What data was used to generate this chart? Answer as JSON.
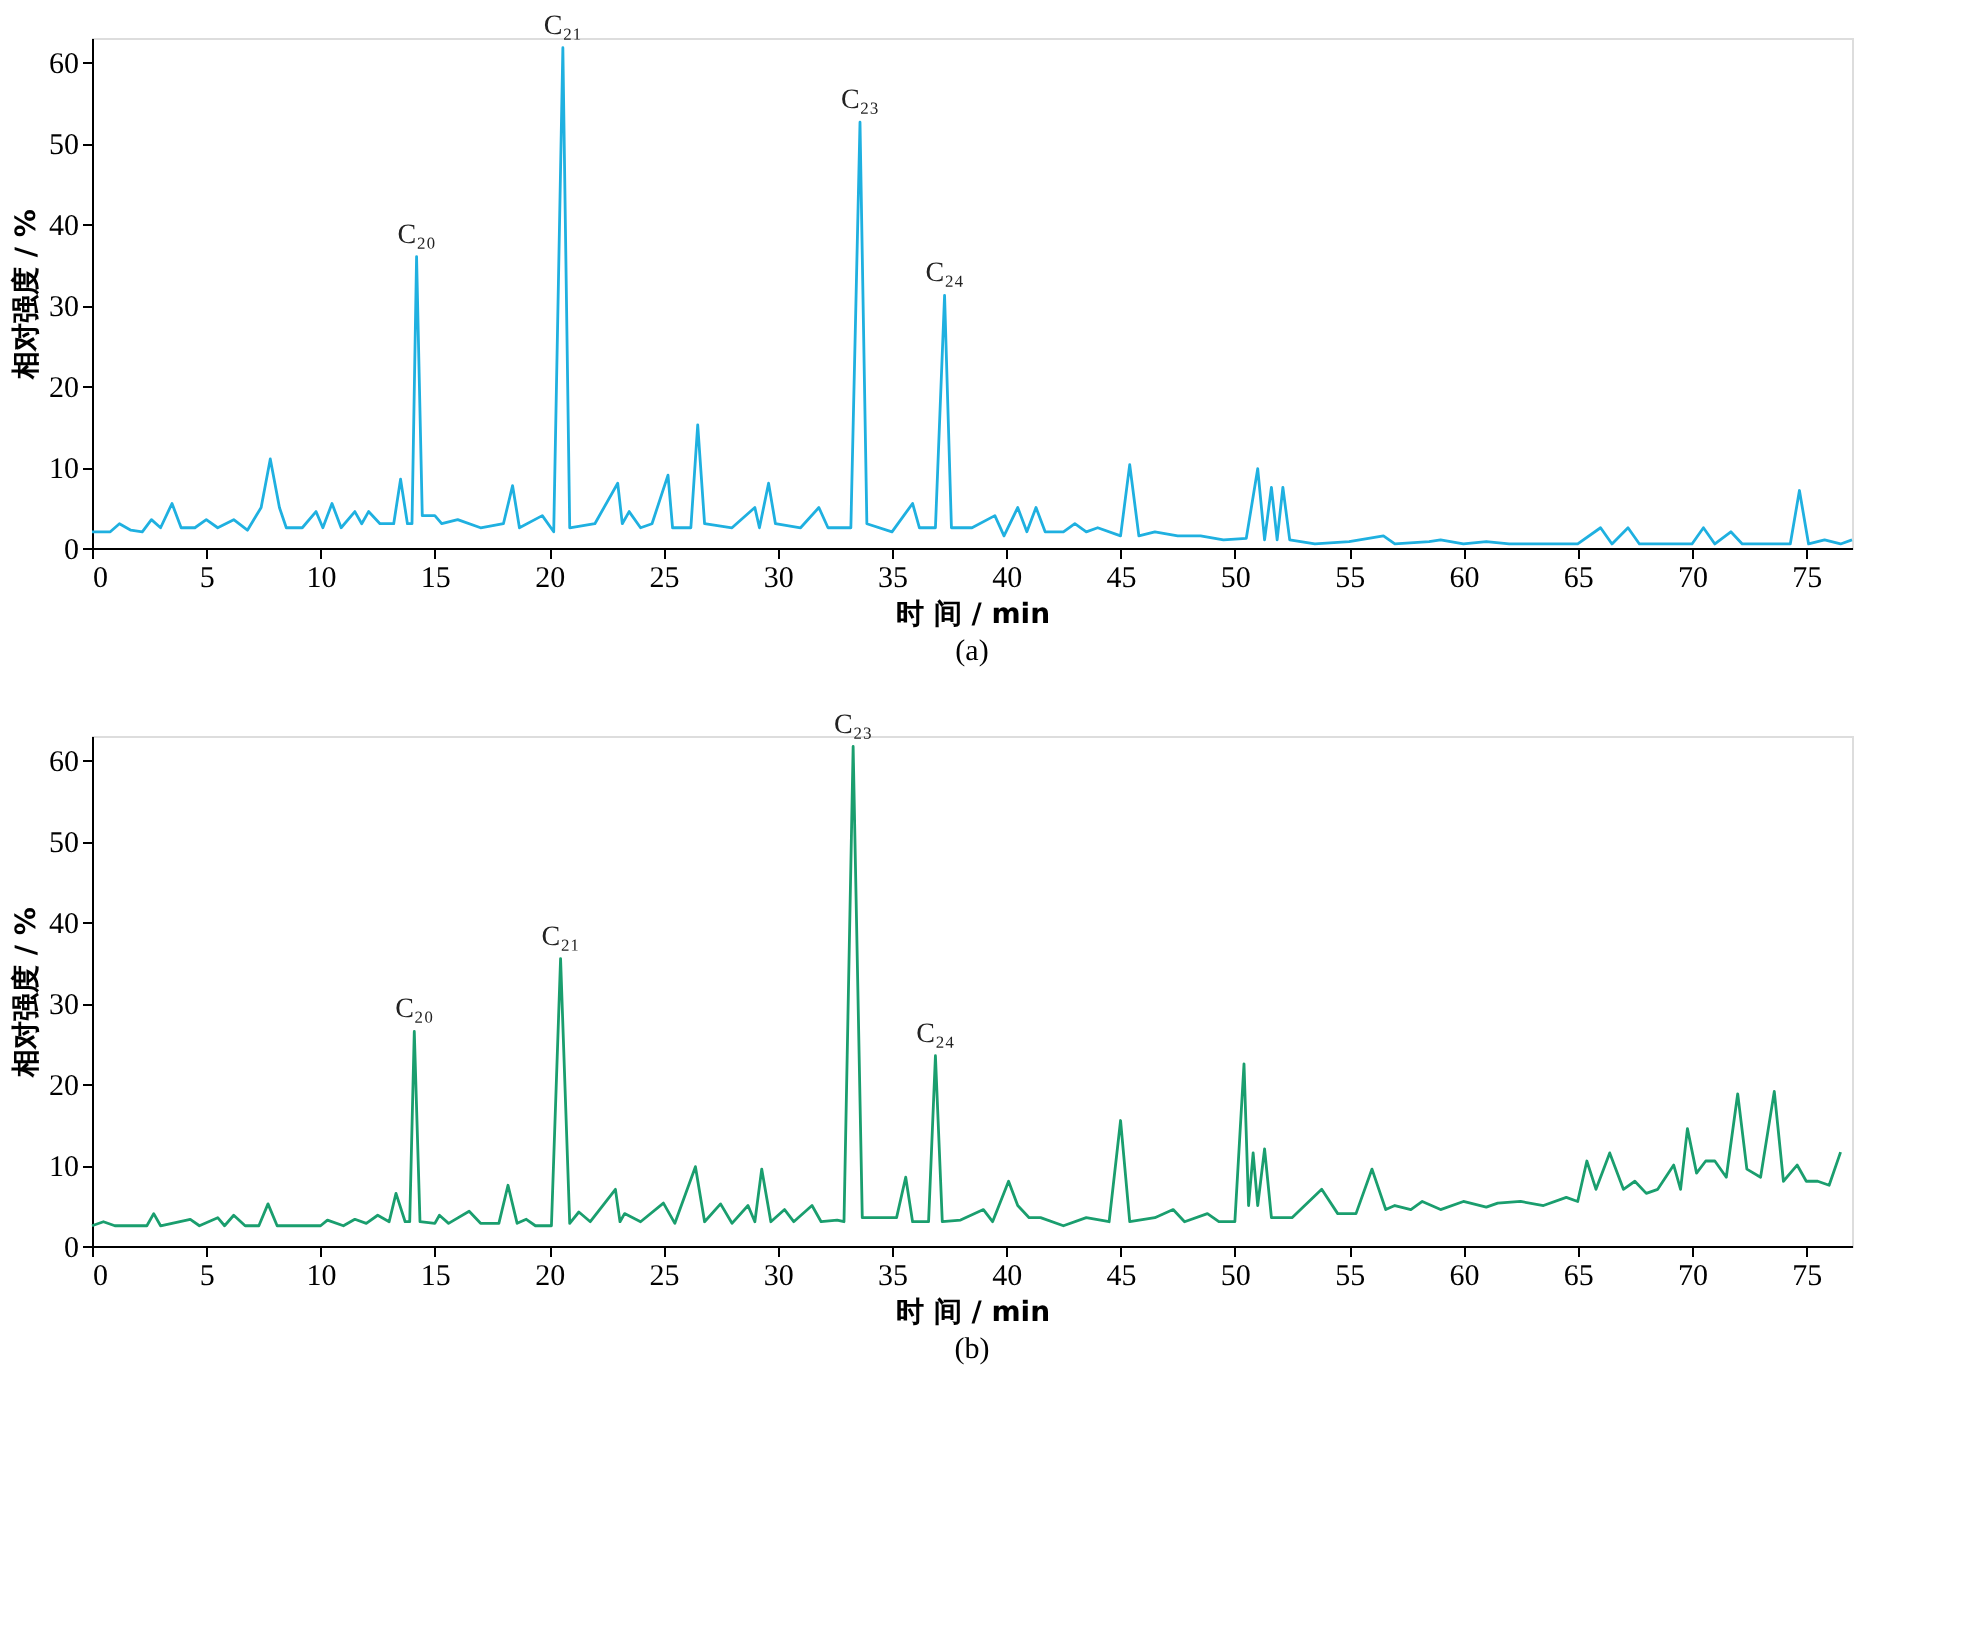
{
  "chart_data": [
    {
      "type": "line",
      "title": "(a)",
      "xlabel": "时 间 / min",
      "ylabel": "相对强度 / %",
      "xlim": [
        0,
        77
      ],
      "ylim": [
        0,
        63
      ],
      "xticks": [
        0,
        5,
        10,
        15,
        20,
        25,
        30,
        35,
        40,
        45,
        50,
        55,
        60,
        65,
        70,
        75
      ],
      "yticks": [
        0,
        10,
        20,
        30,
        40,
        50,
        60
      ],
      "series": [
        {
          "color": "#1fb0e0",
          "x": [
            0,
            0.8,
            1.2,
            1.7,
            2.2,
            2.6,
            3,
            3.5,
            3.9,
            4.5,
            5,
            5.5,
            6.2,
            6.8,
            7.4,
            7.8,
            8.2,
            8.5,
            9.2,
            9.8,
            10.1,
            10.5,
            10.9,
            11.5,
            11.8,
            12.1,
            12.6,
            13.2,
            13.5,
            13.8,
            14,
            14.2,
            14.45,
            15,
            15.3,
            16,
            17,
            18,
            18.4,
            18.7,
            19.7,
            20.2,
            20.6,
            20.9,
            22,
            23,
            23.2,
            23.5,
            24,
            24.5,
            25.2,
            25.4,
            26.2,
            26.5,
            26.8,
            28,
            29,
            29.2,
            29.6,
            29.9,
            31,
            31.8,
            32.2,
            33.2,
            33.6,
            33.9,
            35,
            35.9,
            36.2,
            36.9,
            37.3,
            37.6,
            38.5,
            39.5,
            39.9,
            40.5,
            40.9,
            41.3,
            41.7,
            42.5,
            43,
            43.5,
            44,
            45,
            45.4,
            45.8,
            46.5,
            47.5,
            48.5,
            49.5,
            50.5,
            51,
            51.3,
            51.6,
            51.85,
            52.1,
            52.4,
            53.5,
            55,
            56.5,
            57,
            58.5,
            59,
            60,
            61,
            62,
            65,
            66,
            66.5,
            67.2,
            67.7,
            70,
            70.5,
            71,
            71.7,
            72.2,
            74.3,
            74.7,
            75.1,
            75.8,
            76.5,
            77
          ],
          "values": [
            2,
            2,
            3,
            2.2,
            2,
            3.5,
            2.5,
            5.5,
            2.5,
            2.5,
            3.5,
            2.5,
            3.5,
            2.2,
            5,
            11,
            5,
            2.5,
            2.5,
            4.5,
            2.5,
            5.5,
            2.5,
            4.5,
            3,
            4.5,
            3,
            3,
            8.5,
            3,
            3,
            36,
            4,
            4,
            3,
            3.5,
            2.5,
            3,
            7.7,
            2.5,
            4,
            2,
            61.8,
            2.5,
            3,
            8,
            3,
            4.5,
            2.5,
            3,
            9,
            2.5,
            2.5,
            15.2,
            3,
            2.5,
            5,
            2.5,
            8,
            3,
            2.5,
            5,
            2.5,
            2.5,
            52.6,
            3,
            2,
            5.5,
            2.5,
            2.5,
            31.2,
            2.5,
            2.5,
            4,
            1.5,
            5,
            2,
            5,
            2,
            2,
            3,
            2,
            2.5,
            1.5,
            10.3,
            1.5,
            2,
            1.5,
            1.5,
            1,
            1.2,
            9.8,
            1,
            7.5,
            1,
            7.5,
            1,
            0.5,
            0.8,
            1.5,
            0.5,
            0.8,
            1,
            0.5,
            0.8,
            0.5,
            0.5,
            2.5,
            0.5,
            2.5,
            0.5,
            0.5,
            2.5,
            0.5,
            2,
            0.5,
            0.5,
            7.1,
            0.5,
            1,
            0.5,
            1
          ]
        }
      ],
      "annotations": [
        {
          "text": "C₂₀",
          "x": 14.2,
          "y": 36
        },
        {
          "text": "C₂₁",
          "x": 20.6,
          "y": 61.8
        },
        {
          "text": "C₂₃",
          "x": 33.6,
          "y": 52.6
        },
        {
          "text": "C₂₄",
          "x": 37.3,
          "y": 31.2
        }
      ]
    },
    {
      "type": "line",
      "title": "(b)",
      "xlabel": "时 间 / min",
      "ylabel": "相对强度 / %",
      "xlim": [
        0,
        77
      ],
      "ylim": [
        0,
        63
      ],
      "xticks": [
        0,
        5,
        10,
        15,
        20,
        25,
        30,
        35,
        40,
        45,
        50,
        55,
        60,
        65,
        70,
        75
      ],
      "yticks": [
        0,
        10,
        20,
        30,
        40,
        50,
        60
      ],
      "series": [
        {
          "color": "#1a9e6e",
          "x": [
            0,
            0.5,
            1,
            2.4,
            2.7,
            3,
            4.3,
            4.7,
            5.5,
            5.8,
            6.2,
            6.7,
            7.3,
            7.7,
            8.1,
            10,
            10.3,
            11,
            11.5,
            12,
            12.5,
            13,
            13.3,
            13.7,
            13.9,
            14.1,
            14.35,
            15,
            15.2,
            15.6,
            16.5,
            17,
            17.8,
            18.2,
            18.6,
            19,
            19.4,
            20.1,
            20.5,
            20.9,
            21.3,
            21.8,
            22.9,
            23.1,
            23.3,
            24,
            25,
            25.5,
            26.4,
            26.8,
            27.5,
            28,
            28.7,
            29,
            29.3,
            29.7,
            30.3,
            30.7,
            31.5,
            31.9,
            32.6,
            32.9,
            33.3,
            33.7,
            35.2,
            35.6,
            35.9,
            36.6,
            36.9,
            37.2,
            38,
            39,
            39.4,
            40.1,
            40.5,
            41,
            41.5,
            42.5,
            43.5,
            44.5,
            45,
            45.4,
            46.5,
            47.3,
            47.8,
            48.8,
            49.3,
            50,
            50.4,
            50.6,
            50.8,
            51,
            51.3,
            51.6,
            52.5,
            53.8,
            54.5,
            55.3,
            56,
            56.6,
            57,
            57.7,
            58.2,
            59,
            60,
            61,
            61.5,
            62.5,
            63.5,
            64.5,
            65,
            65.4,
            65.8,
            66.4,
            67,
            67.5,
            68,
            68.5,
            69.2,
            69.5,
            69.8,
            70.2,
            70.6,
            71,
            71.5,
            72,
            72.4,
            73,
            73.6,
            74,
            74.3,
            74.6,
            75,
            75.5,
            76,
            76.5
          ],
          "values": [
            2.5,
            3,
            2.5,
            2.5,
            4,
            2.5,
            3.3,
            2.5,
            3.5,
            2.5,
            3.8,
            2.5,
            2.5,
            5.2,
            2.5,
            2.5,
            3.2,
            2.5,
            3.3,
            2.8,
            3.8,
            3,
            6.5,
            3,
            3,
            26.5,
            3,
            2.8,
            3.8,
            2.8,
            4.3,
            2.8,
            2.8,
            7.5,
            2.8,
            3.3,
            2.5,
            2.5,
            35.5,
            2.8,
            4.2,
            3,
            7,
            3,
            4,
            3,
            5.3,
            2.8,
            9.8,
            3,
            5.2,
            2.8,
            5,
            3,
            9.5,
            3,
            4.5,
            3,
            5,
            3,
            3.2,
            3,
            61.7,
            3.5,
            3.5,
            8.5,
            3,
            3,
            23.5,
            3,
            3.2,
            4.5,
            3,
            8,
            5,
            3.5,
            3.5,
            2.5,
            3.5,
            3,
            15.5,
            3,
            3.5,
            4.5,
            3,
            4,
            3,
            3,
            22.5,
            5,
            11.5,
            5,
            12,
            3.5,
            3.5,
            7,
            4,
            4,
            9.5,
            4.5,
            5,
            4.5,
            5.5,
            4.5,
            5.5,
            4.8,
            5.3,
            5.5,
            5,
            6,
            5.5,
            10.5,
            7,
            11.5,
            7,
            8,
            6.5,
            7,
            10,
            7,
            14.5,
            9,
            10.5,
            10.5,
            8.5,
            18.8,
            9.5,
            8.5,
            19.1,
            8,
            9,
            10,
            8,
            8,
            7.5,
            11.6
          ]
        }
      ],
      "annotations": [
        {
          "text": "C₂₀",
          "x": 14.1,
          "y": 26.5
        },
        {
          "text": "C₂₁",
          "x": 20.5,
          "y": 35.5
        },
        {
          "text": "C₂₃",
          "x": 33.3,
          "y": 61.7
        },
        {
          "text": "C₂₄",
          "x": 36.9,
          "y": 23.5
        }
      ]
    }
  ]
}
